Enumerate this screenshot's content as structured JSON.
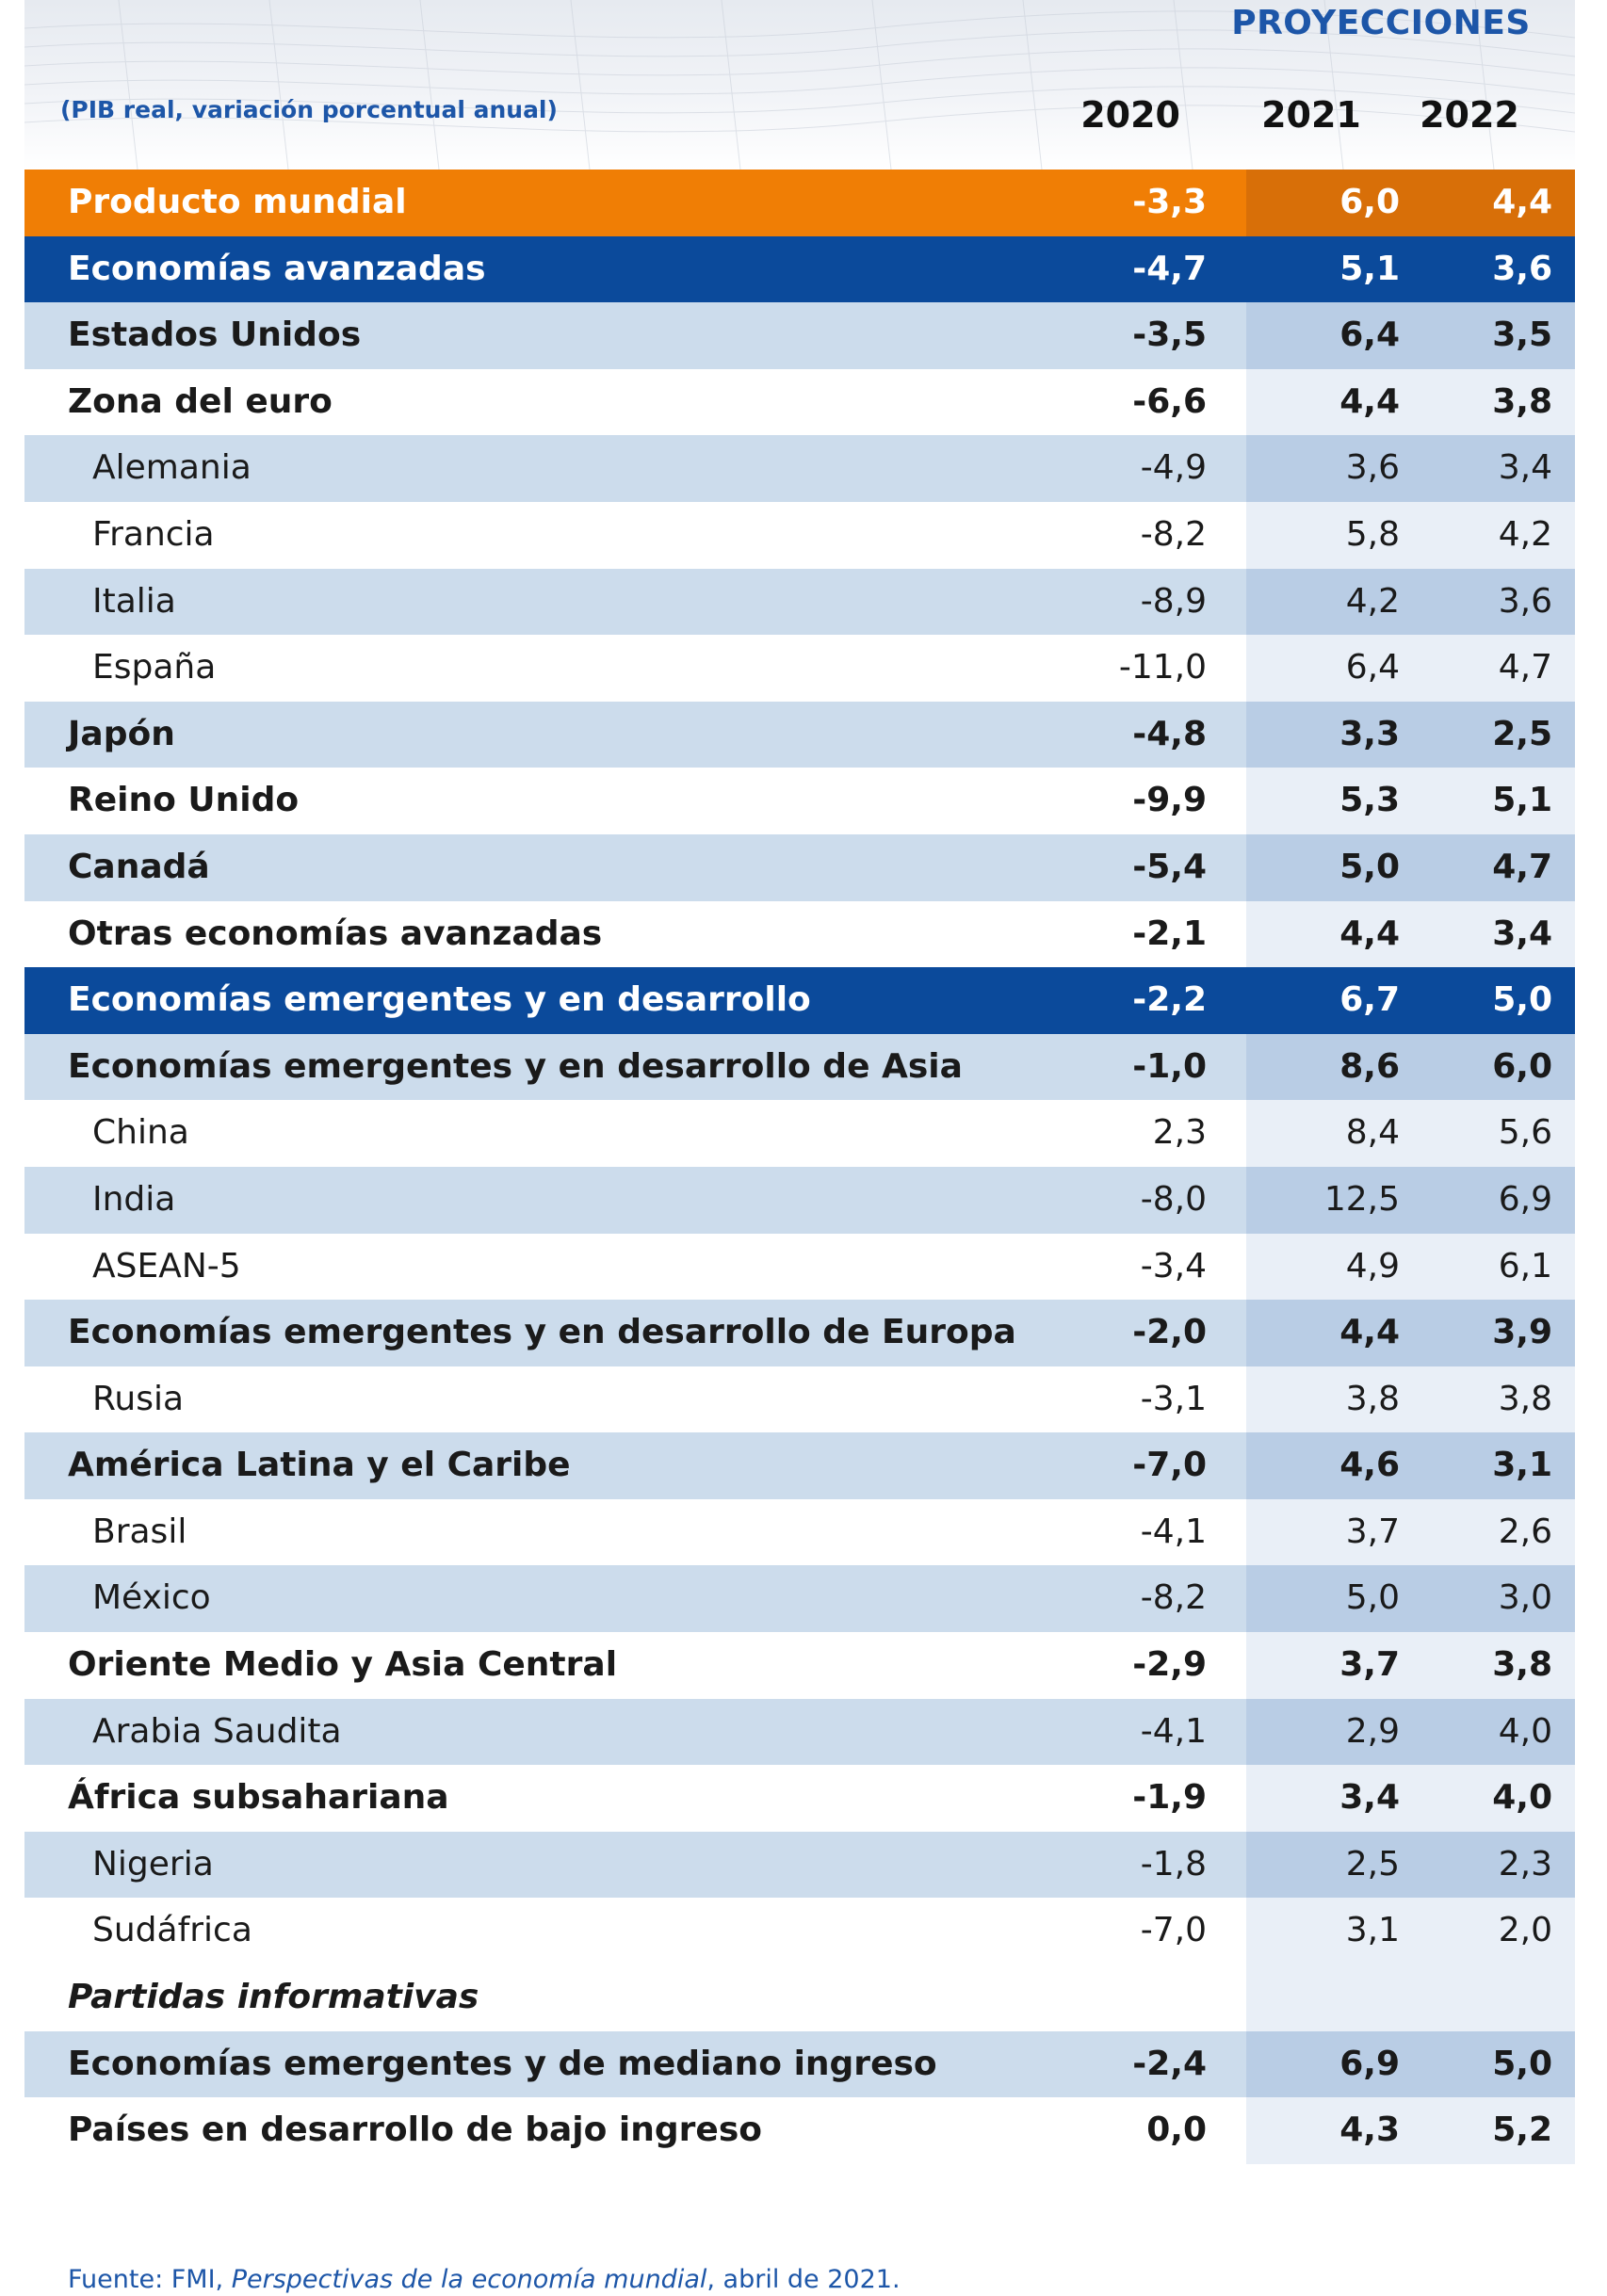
{
  "header": {
    "projections_label": "PROYECCIONES",
    "units_label": "(PIB real, variación porcentual anual)",
    "years": [
      "2020",
      "2021",
      "2022"
    ]
  },
  "rows": [
    {
      "label": "Producto mundial",
      "v2020": "-3,3",
      "v2021": "6,0",
      "v2022": "4,4",
      "style": "orange",
      "indent": false,
      "bold": true
    },
    {
      "label": "Economías avanzadas",
      "v2020": "-4,7",
      "v2021": "5,1",
      "v2022": "3,6",
      "style": "navy",
      "indent": false,
      "bold": true
    },
    {
      "label": "Estados Unidos",
      "v2020": "-3,5",
      "v2021": "6,4",
      "v2022": "3,5",
      "style": "even",
      "indent": false,
      "bold": true
    },
    {
      "label": "Zona del euro",
      "v2020": "-6,6",
      "v2021": "4,4",
      "v2022": "3,8",
      "style": "odd",
      "indent": false,
      "bold": true
    },
    {
      "label": "Alemania",
      "v2020": "-4,9",
      "v2021": "3,6",
      "v2022": "3,4",
      "style": "even",
      "indent": true,
      "bold": false
    },
    {
      "label": "Francia",
      "v2020": "-8,2",
      "v2021": "5,8",
      "v2022": "4,2",
      "style": "odd",
      "indent": true,
      "bold": false
    },
    {
      "label": "Italia",
      "v2020": "-8,9",
      "v2021": "4,2",
      "v2022": "3,6",
      "style": "even",
      "indent": true,
      "bold": false
    },
    {
      "label": "España",
      "v2020": "-11,0",
      "v2021": "6,4",
      "v2022": "4,7",
      "style": "odd",
      "indent": true,
      "bold": false
    },
    {
      "label": "Japón",
      "v2020": "-4,8",
      "v2021": "3,3",
      "v2022": "2,5",
      "style": "even",
      "indent": false,
      "bold": true
    },
    {
      "label": "Reino Unido",
      "v2020": "-9,9",
      "v2021": "5,3",
      "v2022": "5,1",
      "style": "odd",
      "indent": false,
      "bold": true
    },
    {
      "label": "Canadá",
      "v2020": "-5,4",
      "v2021": "5,0",
      "v2022": "4,7",
      "style": "even",
      "indent": false,
      "bold": true
    },
    {
      "label": "Otras economías avanzadas",
      "v2020": "-2,1",
      "v2021": "4,4",
      "v2022": "3,4",
      "style": "odd",
      "indent": false,
      "bold": true
    },
    {
      "label": "Economías emergentes y en desarrollo",
      "v2020": "-2,2",
      "v2021": "6,7",
      "v2022": "5,0",
      "style": "navy",
      "indent": false,
      "bold": true
    },
    {
      "label": "Economías emergentes y en desarrollo de Asia",
      "v2020": "-1,0",
      "v2021": "8,6",
      "v2022": "6,0",
      "style": "even",
      "indent": false,
      "bold": true
    },
    {
      "label": "China",
      "v2020": "2,3",
      "v2021": "8,4",
      "v2022": "5,6",
      "style": "odd",
      "indent": true,
      "bold": false
    },
    {
      "label": "India",
      "v2020": "-8,0",
      "v2021": "12,5",
      "v2022": "6,9",
      "style": "even",
      "indent": true,
      "bold": false
    },
    {
      "label": "ASEAN-5",
      "v2020": "-3,4",
      "v2021": "4,9",
      "v2022": "6,1",
      "style": "odd",
      "indent": true,
      "bold": false
    },
    {
      "label": "Economías emergentes y en desarrollo de Europa",
      "v2020": "-2,0",
      "v2021": "4,4",
      "v2022": "3,9",
      "style": "even",
      "indent": false,
      "bold": true
    },
    {
      "label": "Rusia",
      "v2020": "-3,1",
      "v2021": "3,8",
      "v2022": "3,8",
      "style": "odd",
      "indent": true,
      "bold": false
    },
    {
      "label": "América Latina y el Caribe",
      "v2020": "-7,0",
      "v2021": "4,6",
      "v2022": "3,1",
      "style": "even",
      "indent": false,
      "bold": true
    },
    {
      "label": "Brasil",
      "v2020": "-4,1",
      "v2021": "3,7",
      "v2022": "2,6",
      "style": "odd",
      "indent": true,
      "bold": false
    },
    {
      "label": "México",
      "v2020": "-8,2",
      "v2021": "5,0",
      "v2022": "3,0",
      "style": "even",
      "indent": true,
      "bold": false
    },
    {
      "label": "Oriente Medio y Asia Central",
      "v2020": "-2,9",
      "v2021": "3,7",
      "v2022": "3,8",
      "style": "odd",
      "indent": false,
      "bold": true
    },
    {
      "label": "Arabia Saudita",
      "v2020": "-4,1",
      "v2021": "2,9",
      "v2022": "4,0",
      "style": "even",
      "indent": true,
      "bold": false
    },
    {
      "label": "África subsahariana",
      "v2020": "-1,9",
      "v2021": "3,4",
      "v2022": "4,0",
      "style": "odd",
      "indent": false,
      "bold": true
    },
    {
      "label": "Nigeria",
      "v2020": "-1,8",
      "v2021": "2,5",
      "v2022": "2,3",
      "style": "even",
      "indent": true,
      "bold": false
    },
    {
      "label": "Sudáfrica",
      "v2020": "-7,0",
      "v2021": "3,1",
      "v2022": "2,0",
      "style": "odd",
      "indent": true,
      "bold": false
    },
    {
      "label": "Partidas informativas",
      "v2020": "",
      "v2021": "",
      "v2022": "",
      "style": "odd",
      "indent": false,
      "bold": true,
      "italic": true
    },
    {
      "label": "Economías emergentes y de mediano ingreso",
      "v2020": "-2,4",
      "v2021": "6,9",
      "v2022": "5,0",
      "style": "even",
      "indent": false,
      "bold": true
    },
    {
      "label": "Países en desarrollo de bajo ingreso",
      "v2020": "0,0",
      "v2021": "4,3",
      "v2022": "5,2",
      "style": "odd",
      "indent": false,
      "bold": true
    }
  ],
  "source": {
    "prefix": "Fuente: FMI, ",
    "title": "Perspectivas de la economía mundial",
    "suffix": ", abril de 2021."
  },
  "colors": {
    "orange": "#f07e05",
    "navy": "#0b4a9b",
    "light_blue": "#ccdcec",
    "accent_text": "#1d56a8"
  }
}
